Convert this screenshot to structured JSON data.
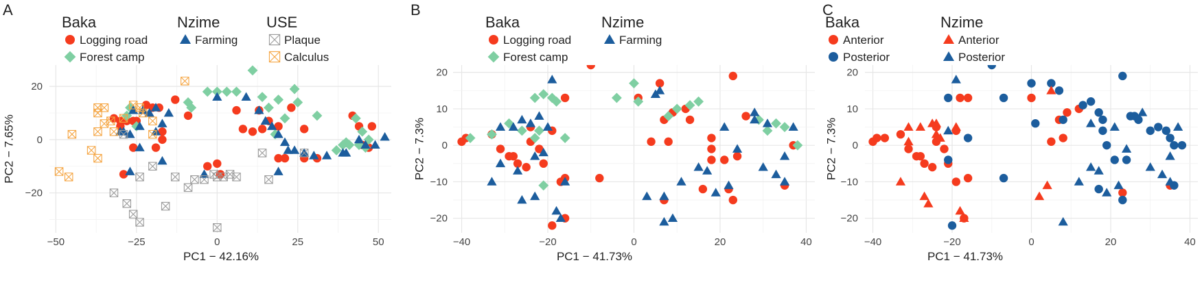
{
  "chart_data": [
    {
      "panel": "A",
      "type": "scatter",
      "xlabel": "PC1  −  42.16%",
      "ylabel": "PC2  −  7.65%",
      "xlim": [
        -52,
        54
      ],
      "ylim": [
        -35,
        28
      ],
      "xticks": [
        -50,
        -25,
        0,
        25,
        50
      ],
      "yticks": [
        -20,
        0,
        20
      ],
      "grid": true,
      "legend": {
        "placement": "top",
        "groups": [
          {
            "title": "Baka",
            "entries": [
              {
                "label": "Logging road",
                "shape": "circle",
                "color": "#f53b1e"
              },
              {
                "label": "Forest camp",
                "shape": "diamond",
                "color": "#7fcfa2"
              }
            ]
          },
          {
            "title": "Nzime",
            "entries": [
              {
                "label": "Farming",
                "shape": "triangle",
                "color": "#1c5d9d"
              }
            ]
          },
          {
            "title": "USE",
            "entries": [
              {
                "label": "Plaque",
                "shape": "boxx",
                "color": "#9b9b9b"
              },
              {
                "label": "Calculus",
                "shape": "boxx",
                "color": "#f5a542"
              }
            ]
          }
        ]
      },
      "series": [
        {
          "name": "Logging road",
          "shape": "circle",
          "color": "#f53b1e",
          "x": [
            -32,
            -30,
            -28,
            -26,
            -30,
            -22,
            -20,
            -18,
            -17,
            -17,
            -19,
            -13,
            -25,
            -26,
            -29,
            -9,
            6,
            8,
            11,
            13,
            16,
            14,
            19,
            21,
            23,
            27,
            42,
            44,
            48,
            19,
            1,
            0,
            -3,
            47,
            45,
            27,
            31
          ],
          "y": [
            8,
            7,
            7,
            7,
            5,
            13,
            12,
            12,
            3,
            0,
            -3,
            15,
            7,
            -3,
            -13,
            9,
            11,
            4,
            3,
            11,
            7,
            4,
            5,
            -7,
            12,
            4,
            9,
            5,
            5,
            -7,
            -13,
            -9,
            -10,
            -3,
            -2,
            -7,
            -7
          ]
        },
        {
          "name": "Forest camp",
          "shape": "diamond",
          "color": "#7fcfa2",
          "x": [
            -27,
            -28,
            -25,
            -9,
            -8,
            -3,
            0,
            3,
            6,
            11,
            14,
            19,
            21,
            24,
            25,
            31,
            39,
            43,
            45,
            47,
            46,
            37,
            40,
            44,
            41,
            18,
            16
          ],
          "y": [
            12,
            9,
            5,
            14,
            12,
            18,
            18,
            18,
            18,
            26,
            16,
            15,
            8,
            19,
            14,
            9,
            -2,
            8,
            3,
            0,
            -3,
            -4,
            -1,
            -2,
            -2,
            2,
            12
          ]
        },
        {
          "name": "Farming",
          "shape": "triangle",
          "color": "#1c5d9d",
          "x": [
            -30,
            -27,
            -26,
            -24,
            -23,
            -21,
            -19,
            -17,
            -15,
            -27,
            -29,
            -24,
            -19,
            -17,
            -4,
            0,
            9,
            13,
            15,
            17,
            19,
            21,
            22,
            24,
            27,
            30,
            34,
            39,
            40,
            44,
            46,
            49,
            52,
            19
          ],
          "y": [
            3,
            2,
            11,
            5,
            11,
            10,
            12,
            6,
            10,
            -12,
            3,
            -3,
            3,
            -8,
            -13,
            16,
            16,
            11,
            7,
            5,
            2,
            -1,
            -4,
            -4,
            -5,
            -6,
            -6,
            -5,
            -5,
            0,
            -2,
            -2,
            1,
            -12
          ]
        },
        {
          "name": "Plaque",
          "shape": "boxx",
          "color": "#9b9b9b",
          "x": [
            -32,
            -28,
            -26,
            -24,
            -24,
            -20,
            -16,
            -13,
            -9,
            -7,
            -4,
            -1,
            0,
            2,
            4,
            6,
            14,
            16,
            27,
            -29,
            0
          ],
          "y": [
            -20,
            -24,
            -28,
            -31,
            -14,
            -10,
            -25,
            -14,
            -18,
            -15,
            -15,
            -13,
            -14,
            -14,
            -13,
            -14,
            -5,
            -15,
            -5,
            2,
            -33
          ]
        },
        {
          "name": "Calculus",
          "shape": "boxx",
          "color": "#f5a542",
          "x": [
            -37,
            -35,
            -37,
            -35,
            -33,
            -37,
            -37,
            -39,
            -45,
            -46,
            -49,
            -32,
            -29,
            -26,
            -24,
            -23,
            -20,
            -20,
            -10
          ],
          "y": [
            12,
            12,
            10,
            6,
            7,
            3,
            -7,
            -4,
            2,
            -14,
            -12,
            3,
            8,
            13,
            12,
            10,
            7,
            2,
            22
          ]
        }
      ]
    },
    {
      "panel": "B",
      "type": "scatter",
      "xlabel": "PC1  −  41.73%",
      "ylabel": "PC2  −  7.3%",
      "xlim": [
        -42,
        42
      ],
      "ylim": [
        -24,
        22
      ],
      "xticks": [
        -40,
        -20,
        0,
        20,
        40
      ],
      "yticks": [
        -20,
        -10,
        0,
        10,
        20
      ],
      "grid": true,
      "legend": {
        "placement": "top",
        "groups": [
          {
            "title": "Baka",
            "entries": [
              {
                "label": "Logging road",
                "shape": "circle",
                "color": "#f53b1e"
              },
              {
                "label": "Forest camp",
                "shape": "diamond",
                "color": "#7fcfa2"
              }
            ]
          },
          {
            "title": "Nzime",
            "entries": [
              {
                "label": "Farming",
                "shape": "triangle",
                "color": "#1c5d9d"
              }
            ]
          }
        ]
      },
      "series": [
        {
          "name": "Logging road",
          "shape": "circle",
          "color": "#f53b1e",
          "x": [
            -40,
            -39,
            -33,
            -31,
            -28,
            -27,
            -29,
            -25,
            -24,
            -24,
            -22,
            -21,
            -19,
            -16,
            -16,
            -10,
            -8,
            -16,
            -17,
            -19,
            1,
            6,
            7,
            9,
            12,
            13,
            18,
            18,
            18,
            21,
            23,
            24,
            26,
            22,
            35,
            37,
            4,
            8,
            7,
            16,
            23
          ],
          "y": [
            1,
            2,
            3,
            -1,
            -3,
            -5,
            -3,
            -6,
            1,
            5,
            -1,
            -5,
            4,
            13,
            -9,
            22,
            -9,
            -20,
            -10,
            -22,
            13,
            17,
            7,
            9,
            10,
            7,
            2,
            -1,
            -4,
            -4,
            19,
            -3,
            8,
            -12,
            -11,
            0,
            1,
            1,
            -15,
            -12,
            -15
          ]
        },
        {
          "name": "Forest camp",
          "shape": "diamond",
          "color": "#7fcfa2",
          "x": [
            -38,
            -33,
            -29,
            -26,
            -23,
            -21,
            -19,
            -18,
            -16,
            -23,
            -22,
            -21,
            -4,
            0,
            1,
            8,
            10,
            13,
            15,
            29,
            31,
            33,
            35,
            38
          ],
          "y": [
            2,
            3,
            6,
            4,
            2,
            14,
            13,
            12,
            2,
            13,
            4,
            -11,
            13,
            17,
            12,
            8,
            10,
            11,
            12,
            7,
            4,
            6,
            5,
            0
          ]
        },
        {
          "name": "Farming",
          "shape": "triangle",
          "color": "#1c5d9d",
          "x": [
            -33,
            -31,
            -31,
            -28,
            -27,
            -26,
            -26,
            -24,
            -23,
            -23,
            -22,
            -21,
            -19,
            -18,
            -17,
            -16,
            -20,
            6,
            7,
            9,
            11,
            15,
            17,
            19,
            21,
            24,
            28,
            30,
            33,
            35,
            35,
            37,
            31,
            22,
            5,
            3,
            7,
            28
          ],
          "y": [
            -10,
            -5,
            5,
            5,
            -7,
            -15,
            7,
            6,
            -14,
            -3,
            8,
            -2,
            18,
            -18,
            -20,
            -10,
            5,
            15,
            -14,
            -20,
            -10,
            -6,
            -7,
            -13,
            5,
            -1,
            9,
            -6,
            -8,
            -10,
            -3,
            5,
            6,
            -11,
            14,
            -14,
            -21,
            7
          ]
        }
      ]
    },
    {
      "panel": "C",
      "type": "scatter",
      "xlabel": "PC1  −  41.73%",
      "ylabel": "PC2  −  7.3%",
      "xlim": [
        -42,
        42
      ],
      "ylim": [
        -24,
        22
      ],
      "xticks": [
        -40,
        -20,
        0,
        20,
        40
      ],
      "yticks": [
        -20,
        -10,
        0,
        10,
        20
      ],
      "grid": true,
      "legend": {
        "placement": "top",
        "groups": [
          {
            "title": "Baka",
            "entries": [
              {
                "label": "Anterior",
                "shape": "circle",
                "color": "#f53b1e"
              },
              {
                "label": "Posterior",
                "shape": "circle",
                "color": "#1c5d9d"
              }
            ]
          },
          {
            "title": "Nzime",
            "entries": [
              {
                "label": "Anterior",
                "shape": "triangle",
                "color": "#f53b1e"
              },
              {
                "label": "Posterior",
                "shape": "triangle",
                "color": "#1c5d9d"
              }
            ]
          }
        ]
      },
      "series": [
        {
          "name": "Baka Anterior",
          "shape": "circle",
          "color": "#f53b1e",
          "x": [
            -40,
            -39,
            -37,
            -33,
            -31,
            -28,
            -27,
            -29,
            -25,
            -24,
            -24,
            -22,
            -21,
            -19,
            -18,
            -16,
            -16,
            -17,
            -19,
            0,
            5,
            7,
            8,
            9,
            12,
            23,
            35
          ],
          "y": [
            1,
            2,
            2,
            3,
            -1,
            -3,
            -5,
            -3,
            -6,
            1,
            5,
            -1,
            -5,
            4,
            13,
            13,
            -9,
            -20,
            -10,
            13,
            1,
            7,
            2,
            9,
            10,
            -13,
            -11
          ]
        },
        {
          "name": "Baka Posterior",
          "shape": "circle",
          "color": "#1c5d9d",
          "x": [
            -21,
            -10,
            -7,
            0,
            1,
            5,
            7,
            8,
            13,
            15,
            17,
            18,
            18,
            19,
            21,
            23,
            24,
            25,
            26,
            27,
            30,
            32,
            34,
            35,
            36,
            38,
            36,
            23,
            17,
            -21,
            -16,
            -20,
            -7
          ],
          "y": [
            13,
            22,
            13,
            17,
            6,
            17,
            15,
            7,
            11,
            12,
            9,
            7,
            4,
            0,
            -4,
            19,
            -4,
            8,
            8,
            7,
            4,
            5,
            4,
            2,
            0,
            0,
            -11,
            -15,
            -12,
            -4,
            2,
            -22,
            -9
          ]
        },
        {
          "name": "Nzime Anterior",
          "shape": "triangle",
          "color": "#f53b1e",
          "x": [
            -33,
            -31,
            -31,
            -28,
            -27,
            -26,
            -25,
            -24,
            -19,
            -18,
            -17,
            2,
            4,
            5,
            -24,
            -23
          ],
          "y": [
            -10,
            1,
            5,
            5,
            -14,
            -16,
            6,
            6,
            5,
            -18,
            -20,
            -14,
            -11,
            15,
            3,
            2
          ]
        },
        {
          "name": "Nzime Posterior",
          "shape": "triangle",
          "color": "#1c5d9d",
          "x": [
            -21,
            -19,
            8,
            12,
            15,
            17,
            19,
            21,
            24,
            28,
            30,
            33,
            35,
            35,
            37,
            22,
            15
          ],
          "y": [
            4,
            18,
            -21,
            -10,
            -6,
            -7,
            -13,
            5,
            -1,
            9,
            -6,
            -8,
            -10,
            -3,
            5,
            -11,
            6
          ]
        }
      ]
    }
  ]
}
